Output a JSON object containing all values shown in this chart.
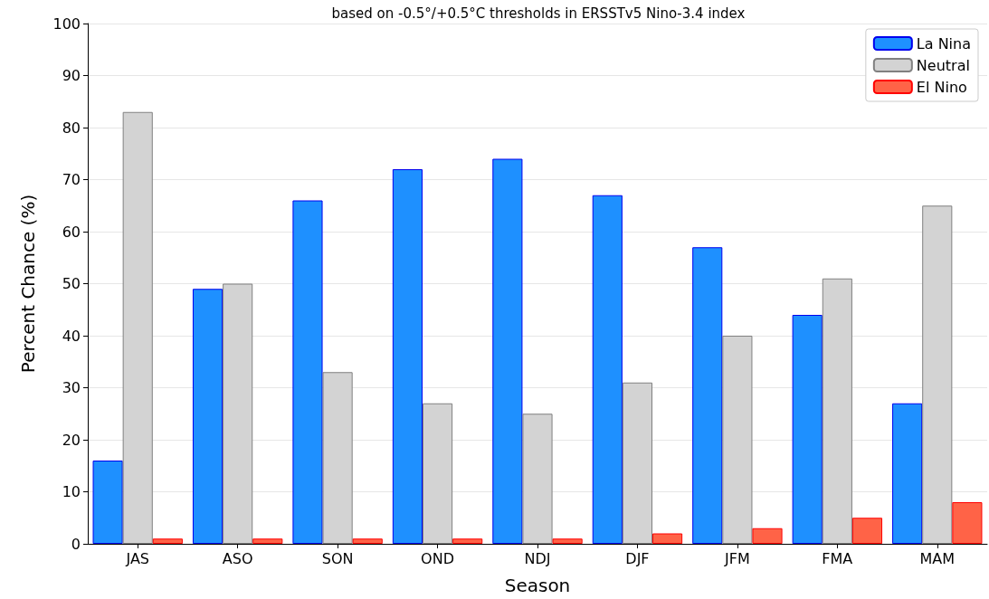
{
  "chart_data": {
    "type": "bar",
    "title": "based on -0.5°/+0.5°C thresholds in ERSSTv5 Nino-3.4 index",
    "xlabel": "Season",
    "ylabel": "Percent Chance (%)",
    "categories": [
      "JAS",
      "ASO",
      "SON",
      "OND",
      "NDJ",
      "DJF",
      "JFM",
      "FMA",
      "MAM"
    ],
    "series": [
      {
        "name": "La Nina",
        "color": "#1e90ff",
        "values": [
          16,
          49,
          66,
          72,
          74,
          67,
          57,
          44,
          27
        ]
      },
      {
        "name": "Neutral",
        "color": "#d3d3d3",
        "values": [
          83,
          50,
          33,
          27,
          25,
          31,
          40,
          51,
          65
        ]
      },
      {
        "name": "El Nino",
        "color": "#ff6347",
        "values": [
          1,
          1,
          1,
          1,
          1,
          2,
          3,
          5,
          8
        ]
      }
    ],
    "ylim": [
      0,
      100
    ],
    "yticks": [
      0,
      10,
      20,
      30,
      40,
      50,
      60,
      70,
      80,
      90,
      100
    ],
    "grid": "y",
    "legend": "top right"
  }
}
